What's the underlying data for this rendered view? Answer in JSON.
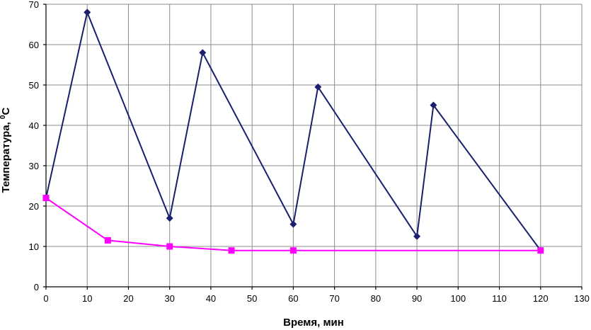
{
  "chart_data": {
    "type": "line",
    "title": "",
    "xlabel": "Время, мин",
    "ylabel_main": "Температура, ",
    "ylabel_sup": "0",
    "ylabel_unit": "C",
    "xlim": [
      0,
      130
    ],
    "ylim": [
      0,
      70
    ],
    "xticks": [
      0,
      10,
      20,
      30,
      40,
      50,
      60,
      70,
      80,
      90,
      100,
      110,
      120,
      130
    ],
    "yticks": [
      0,
      10,
      20,
      30,
      40,
      50,
      60,
      70
    ],
    "grid": true,
    "legend": "none",
    "series": [
      {
        "color": "#1a1f6e",
        "marker": "diamond",
        "x": [
          0,
          10,
          30,
          38,
          60,
          66,
          90,
          94,
          120
        ],
        "y": [
          22,
          68,
          17,
          58,
          15.5,
          49.5,
          12.5,
          45,
          9
        ]
      },
      {
        "color": "#ff00ff",
        "marker": "square",
        "x": [
          0,
          15,
          30,
          45,
          60,
          120
        ],
        "y": [
          22,
          11.5,
          10,
          9,
          9,
          9
        ]
      }
    ]
  }
}
